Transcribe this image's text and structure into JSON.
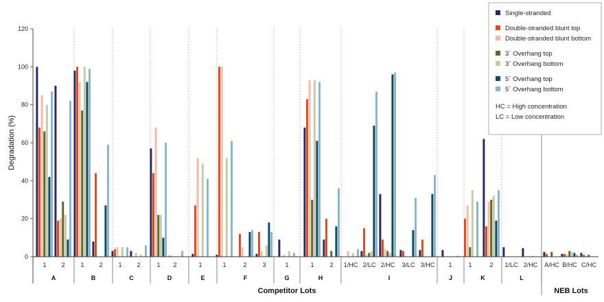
{
  "chart_data": {
    "type": "bar",
    "ylabel": "Degradation (%)",
    "xlabel_main": "Competitor Lots",
    "xlabel_neb": "NEB Lots",
    "ylim": [
      0,
      120
    ],
    "yticks": [
      "0",
      "20",
      "40",
      "60",
      "80",
      "100",
      "120"
    ],
    "legend": {
      "items": [
        {
          "name": "Single-stranded",
          "color": "#2a2a5e"
        },
        {
          "name": "Double-stranded blunt top",
          "color": "#d4502b"
        },
        {
          "name": "Double-stranded blunt bottom",
          "color": "#f2bca4"
        },
        {
          "name": "3´ Overhang top",
          "color": "#5c6a2a"
        },
        {
          "name": "3´ Overhang bottom",
          "color": "#c7c9a8"
        },
        {
          "name": "5´ Overhang top",
          "color": "#0f4a5e"
        },
        {
          "name": "5´ Overhang bottom",
          "color": "#8db6c9"
        }
      ],
      "notes": [
        "HC = High concentration",
        "LC = Low concentration"
      ]
    },
    "groups": [
      {
        "name": "A",
        "lots": [
          {
            "label": "1",
            "values": [
              100,
              68,
              85,
              66,
              80,
              42,
              87
            ]
          },
          {
            "label": "2",
            "values": [
              90,
              19,
              20,
              29,
              22,
              9,
              82
            ]
          }
        ]
      },
      {
        "name": "B",
        "lots": [
          {
            "label": "1",
            "values": [
              98,
              100,
              92,
              77,
              100,
              92,
              99
            ]
          },
          {
            "label": "2",
            "values": [
              8,
              44,
              0,
              0,
              0,
              27,
              59
            ]
          }
        ]
      },
      {
        "name": "C",
        "lots": [
          {
            "label": "1",
            "values": [
              3,
              4,
              5,
              0,
              5,
              0,
              5
            ]
          },
          {
            "label": "2",
            "values": [
              3,
              0,
              2,
              0,
              1,
              0,
              6
            ]
          }
        ]
      },
      {
        "name": "D",
        "lots": [
          {
            "label": "1",
            "values": [
              57,
              44,
              68,
              22,
              22,
              10,
              60
            ]
          },
          {
            "label": "2",
            "values": [
              0,
              0.5,
              0,
              0,
              0,
              0,
              3
            ]
          }
        ]
      },
      {
        "name": "E",
        "lots": [
          {
            "label": "1",
            "values": [
              1.5,
              27,
              52,
              0,
              49,
              0,
              41
            ]
          }
        ]
      },
      {
        "name": "F",
        "lots": [
          {
            "label": "1",
            "values": [
              1,
              100,
              100,
              0,
              52,
              0,
              61
            ]
          },
          {
            "label": "2",
            "values": [
              0,
              12,
              5,
              0,
              0,
              13,
              14
            ]
          },
          {
            "label": "3",
            "values": [
              1.5,
              13,
              3,
              0,
              6,
              18,
              13
            ]
          }
        ]
      },
      {
        "name": "G",
        "lots": [
          {
            "label": "1",
            "values": [
              9,
              0,
              1,
              0,
              3,
              0,
              2
            ]
          }
        ]
      },
      {
        "name": "H",
        "lots": [
          {
            "label": "1",
            "values": [
              68,
              83,
              93,
              30,
              93,
              61,
              92
            ]
          },
          {
            "label": "2",
            "values": [
              9,
              20,
              0,
              3,
              0,
              16,
              36
            ]
          }
        ]
      },
      {
        "name": "I",
        "lots": [
          {
            "label": "1/HC",
            "values": [
              0,
              0,
              3,
              0,
              2,
              0,
              4
            ]
          },
          {
            "label": "2/LC",
            "values": [
              3,
              15,
              1,
              2,
              3,
              69,
              87
            ]
          },
          {
            "label": "2/HC",
            "values": [
              33,
              9,
              4,
              3,
              2,
              96,
              97
            ]
          },
          {
            "label": "3/LC",
            "values": [
              3.5,
              3,
              0,
              0,
              0,
              14,
              31
            ]
          },
          {
            "label": "3/HC",
            "values": [
              3.5,
              9,
              0,
              0,
              0,
              33,
              43
            ]
          }
        ]
      },
      {
        "name": "J",
        "lots": [
          {
            "label": "1",
            "values": [
              3.5,
              0,
              0,
              0,
              0,
              0,
              0.5
            ]
          }
        ]
      },
      {
        "name": "K",
        "lots": [
          {
            "label": "1",
            "values": [
              0,
              20,
              27,
              5,
              35,
              0,
              29
            ]
          },
          {
            "label": "2",
            "values": [
              62,
              16,
              29,
              30,
              32,
              19,
              35
            ]
          }
        ]
      },
      {
        "name": "L",
        "lots": [
          {
            "label": "1/LC",
            "values": [
              5,
              0,
              0,
              0,
              0,
              0,
              0
            ]
          },
          {
            "label": "2/HC",
            "values": [
              4.5,
              0,
              0,
              0,
              0.5,
              0,
              0
            ]
          }
        ]
      }
    ],
    "neb": [
      {
        "label": "A/HC",
        "values": [
          2.5,
          1.5,
          0,
          2.5,
          0,
          0,
          0
        ]
      },
      {
        "label": "B/HC",
        "values": [
          1.5,
          1.5,
          1,
          3,
          2.5,
          2,
          1
        ]
      },
      {
        "label": "C/HC",
        "values": [
          2,
          1,
          0.5,
          1,
          0,
          0,
          0
        ]
      }
    ]
  }
}
